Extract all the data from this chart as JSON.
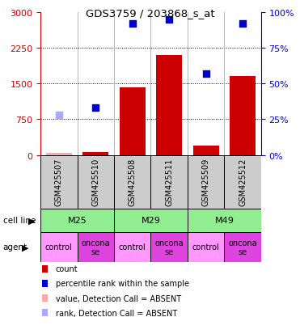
{
  "title": "GDS3759 / 203868_s_at",
  "samples": [
    "GSM425507",
    "GSM425510",
    "GSM425508",
    "GSM425511",
    "GSM425509",
    "GSM425512"
  ],
  "bar_values": [
    50,
    55,
    1420,
    2100,
    200,
    1650
  ],
  "bar_absent": [
    true,
    false,
    false,
    false,
    false,
    false
  ],
  "scatter_values": [
    28,
    33,
    92,
    95,
    57,
    92
  ],
  "scatter_absent": [
    true,
    false,
    false,
    false,
    false,
    false
  ],
  "left_ylim": [
    0,
    3000
  ],
  "left_yticks": [
    0,
    750,
    1500,
    2250,
    3000
  ],
  "right_ylim": [
    0,
    100
  ],
  "right_yticks": [
    0,
    25,
    50,
    75,
    100
  ],
  "cell_lines": [
    {
      "label": "M25",
      "cols": [
        0,
        1
      ],
      "color": "#90ee90"
    },
    {
      "label": "M29",
      "cols": [
        2,
        3
      ],
      "color": "#90ee90"
    },
    {
      "label": "M49",
      "cols": [
        4,
        5
      ],
      "color": "#90ee90"
    }
  ],
  "agents": [
    "control",
    "onconase",
    "control",
    "onconase",
    "control",
    "onconase"
  ],
  "agent_colors": [
    "#ff99ff",
    "#dd44dd",
    "#ff99ff",
    "#dd44dd",
    "#ff99ff",
    "#dd44dd"
  ],
  "bar_color_present": "#cc0000",
  "bar_color_absent": "#ffaaaa",
  "scatter_color_present": "#0000cc",
  "scatter_color_absent": "#aaaaff",
  "bar_width": 0.7,
  "left_axis_color": "#cc0000",
  "right_axis_color": "#0000cc",
  "legend_items": [
    {
      "label": "count",
      "color": "#cc0000"
    },
    {
      "label": "percentile rank within the sample",
      "color": "#0000cc"
    },
    {
      "label": "value, Detection Call = ABSENT",
      "color": "#ffaaaa"
    },
    {
      "label": "rank, Detection Call = ABSENT",
      "color": "#aaaaff"
    }
  ]
}
